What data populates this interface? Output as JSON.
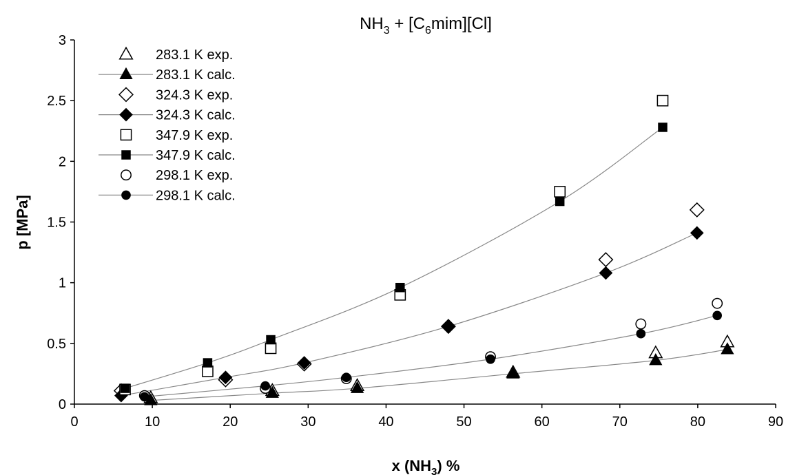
{
  "chart_data": {
    "type": "scatter",
    "title": {
      "prefix": "NH",
      "sub1": "3",
      "middle": " + [C",
      "sub2": "6",
      "suffix": "mim][Cl]"
    },
    "xlabel": {
      "prefix": "x (NH",
      "sub": "3",
      "suffix": ") %"
    },
    "ylabel": "p [MPa]",
    "xlim": [
      0,
      90
    ],
    "ylim": [
      0,
      3
    ],
    "x_ticks": [
      "0",
      "10",
      "20",
      "30",
      "40",
      "50",
      "60",
      "70",
      "80",
      "90"
    ],
    "y_ticks": [
      "0",
      "0.5",
      "1",
      "1.5",
      "2",
      "2.5",
      "3"
    ],
    "grid": false,
    "legend_position": "top-left",
    "series": [
      {
        "name": "283.1 K exp.",
        "marker": "triangle",
        "filled": false,
        "line": false,
        "x": [
          9.8,
          25.4,
          36.3,
          56.3,
          74.6,
          83.8
        ],
        "y": [
          0.05,
          0.11,
          0.15,
          0.26,
          0.42,
          0.51
        ]
      },
      {
        "name": "283.1 K calc.",
        "marker": "triangle",
        "filled": true,
        "line": true,
        "x": [
          9.8,
          25.4,
          36.3,
          56.3,
          74.6,
          83.8
        ],
        "y": [
          0.03,
          0.09,
          0.13,
          0.25,
          0.36,
          0.45
        ]
      },
      {
        "name": "324.3 K exp.",
        "marker": "diamond",
        "filled": false,
        "line": false,
        "x": [
          6.0,
          19.4,
          29.5,
          48.0,
          68.2,
          79.9
        ],
        "y": [
          0.11,
          0.2,
          0.33,
          0.64,
          1.19,
          1.6
        ]
      },
      {
        "name": "324.3 K calc.",
        "marker": "diamond",
        "filled": true,
        "line": true,
        "x": [
          6.0,
          19.4,
          29.5,
          48.0,
          68.2,
          79.9
        ],
        "y": [
          0.07,
          0.22,
          0.34,
          0.64,
          1.08,
          1.41
        ]
      },
      {
        "name": "347.9 K exp.",
        "marker": "square",
        "filled": false,
        "line": false,
        "x": [
          6.5,
          17.1,
          25.2,
          41.8,
          62.3,
          75.5
        ],
        "y": [
          0.12,
          0.27,
          0.46,
          0.9,
          1.75,
          2.5
        ]
      },
      {
        "name": "347.9 K calc.",
        "marker": "square",
        "filled": true,
        "line": true,
        "x": [
          6.5,
          17.1,
          25.2,
          41.8,
          62.3,
          75.5
        ],
        "y": [
          0.13,
          0.34,
          0.53,
          0.96,
          1.67,
          2.28
        ]
      },
      {
        "name": "298.1 K exp.",
        "marker": "circle",
        "filled": false,
        "line": false,
        "x": [
          9.0,
          24.5,
          34.9,
          53.4,
          72.7,
          82.5
        ],
        "y": [
          0.07,
          0.13,
          0.21,
          0.39,
          0.66,
          0.83
        ]
      },
      {
        "name": "298.1 K calc.",
        "marker": "circle",
        "filled": true,
        "line": true,
        "x": [
          9.0,
          24.5,
          34.9,
          53.4,
          72.7,
          82.5
        ],
        "y": [
          0.06,
          0.15,
          0.22,
          0.37,
          0.58,
          0.73
        ]
      }
    ]
  }
}
